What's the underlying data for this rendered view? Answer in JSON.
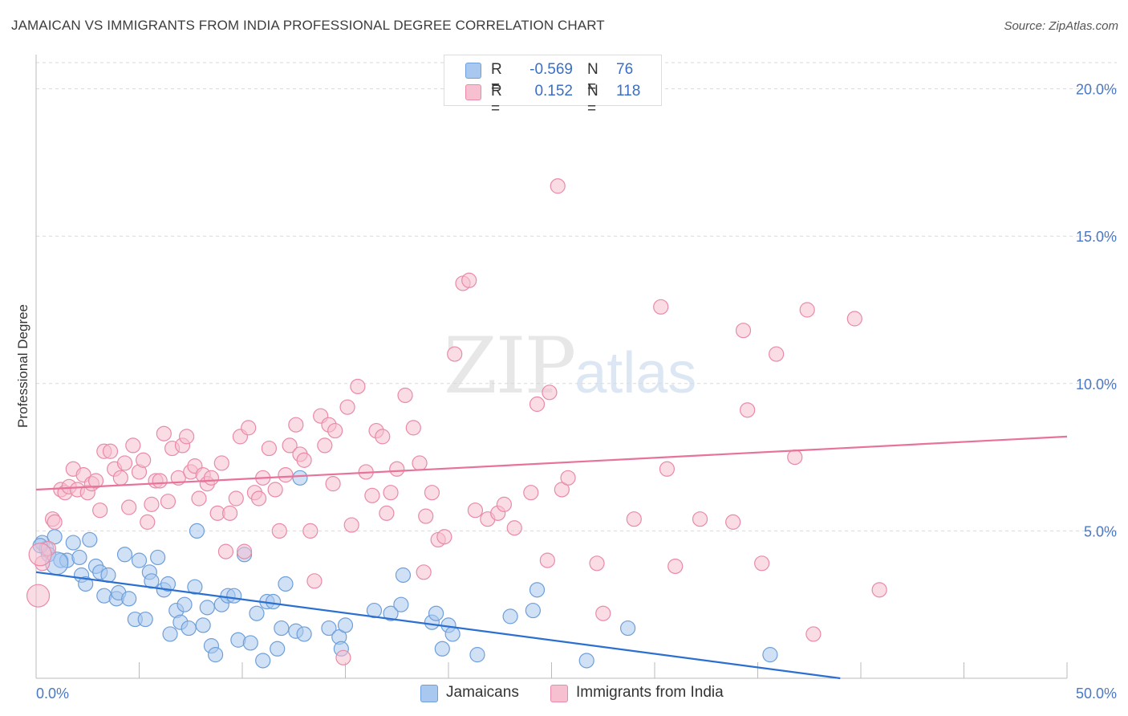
{
  "title": "JAMAICAN VS IMMIGRANTS FROM INDIA PROFESSIONAL DEGREE CORRELATION CHART",
  "source": "Source: ZipAtlas.com",
  "watermark": {
    "zip": "ZIP",
    "atlas": "atlas"
  },
  "legend": {
    "rows": [
      {
        "r_label": "R =",
        "r_value": "-0.569",
        "n_label": "N =",
        "n_value": "76",
        "color": "#a9c8ef",
        "border": "#6e9fd9"
      },
      {
        "r_label": "R =",
        "r_value": "0.152",
        "n_label": "N =",
        "n_value": "118",
        "color": "#f6c0d0",
        "border": "#e98aa8"
      }
    ]
  },
  "bottom_legend": [
    {
      "label": "Jamaicans",
      "color": "#a9c8ef",
      "border": "#6e9fd9"
    },
    {
      "label": "Immigrants from India",
      "color": "#f6c0d0",
      "border": "#e98aa8"
    }
  ],
  "chart_data": {
    "type": "scatter",
    "ylabel": "Professional Degree",
    "xlim": [
      0,
      50
    ],
    "ylim": [
      0,
      20
    ],
    "x_tick_labels": [
      "0.0%",
      "50.0%"
    ],
    "y_tick_labels": [
      "5.0%",
      "10.0%",
      "15.0%",
      "20.0%"
    ],
    "y_ticks": [
      5,
      10,
      15,
      20
    ],
    "grid": true,
    "series": [
      {
        "name": "Jamaicans",
        "color": "#6e9fd9",
        "fill": "#a9c8ef",
        "trend": {
          "x": [
            0,
            39
          ],
          "y": [
            3.6,
            0
          ]
        },
        "points": [
          [
            0.3,
            4.6
          ],
          [
            0.5,
            4.4
          ],
          [
            0.9,
            4.8
          ],
          [
            0.6,
            4.2
          ],
          [
            1.2,
            4.0
          ],
          [
            1.5,
            4.0
          ],
          [
            1.8,
            4.6
          ],
          [
            2.1,
            4.1
          ],
          [
            2.6,
            4.7
          ],
          [
            2.2,
            3.5
          ],
          [
            2.4,
            3.2
          ],
          [
            2.9,
            3.8
          ],
          [
            3.1,
            3.6
          ],
          [
            3.5,
            3.5
          ],
          [
            3.3,
            2.8
          ],
          [
            3.9,
            2.7
          ],
          [
            4.0,
            2.9
          ],
          [
            4.5,
            2.7
          ],
          [
            4.3,
            4.2
          ],
          [
            4.8,
            2.0
          ],
          [
            5.0,
            4.0
          ],
          [
            5.3,
            2.0
          ],
          [
            5.5,
            3.6
          ],
          [
            5.6,
            3.3
          ],
          [
            5.9,
            4.1
          ],
          [
            6.2,
            3.0
          ],
          [
            6.4,
            3.2
          ],
          [
            6.5,
            1.5
          ],
          [
            6.8,
            2.3
          ],
          [
            7.0,
            1.9
          ],
          [
            7.2,
            2.5
          ],
          [
            7.4,
            1.7
          ],
          [
            7.7,
            3.1
          ],
          [
            7.8,
            5.0
          ],
          [
            8.1,
            1.8
          ],
          [
            8.3,
            2.4
          ],
          [
            8.5,
            1.1
          ],
          [
            8.7,
            0.8
          ],
          [
            9.0,
            2.5
          ],
          [
            9.3,
            2.8
          ],
          [
            9.6,
            2.8
          ],
          [
            9.8,
            1.3
          ],
          [
            10.1,
            4.2
          ],
          [
            10.4,
            1.2
          ],
          [
            10.7,
            2.2
          ],
          [
            11.0,
            0.6
          ],
          [
            11.2,
            2.6
          ],
          [
            11.5,
            2.6
          ],
          [
            11.7,
            1.0
          ],
          [
            11.9,
            1.7
          ],
          [
            12.1,
            3.2
          ],
          [
            12.6,
            1.6
          ],
          [
            13.0,
            1.5
          ],
          [
            12.8,
            6.8
          ],
          [
            14.2,
            1.7
          ],
          [
            14.7,
            1.4
          ],
          [
            14.8,
            1.0
          ],
          [
            15.0,
            1.8
          ],
          [
            16.4,
            2.3
          ],
          [
            17.2,
            2.2
          ],
          [
            17.7,
            2.5
          ],
          [
            17.8,
            3.5
          ],
          [
            19.2,
            1.9
          ],
          [
            19.4,
            2.2
          ],
          [
            19.7,
            1.0
          ],
          [
            20.0,
            1.8
          ],
          [
            20.2,
            1.5
          ],
          [
            21.4,
            0.8
          ],
          [
            23.0,
            2.1
          ],
          [
            24.1,
            2.3
          ],
          [
            24.3,
            3.0
          ],
          [
            26.7,
            0.6
          ],
          [
            28.7,
            1.7
          ],
          [
            35.6,
            0.8
          ],
          [
            0.2,
            4.5
          ],
          [
            1.0,
            3.9
          ]
        ]
      },
      {
        "name": "Immigrants from India",
        "color": "#e98aa8",
        "fill": "#f6c0d0",
        "trend": {
          "x": [
            0,
            50
          ],
          "y": [
            6.4,
            8.2
          ]
        },
        "points": [
          [
            0.1,
            2.8
          ],
          [
            0.3,
            3.9
          ],
          [
            0.6,
            4.4
          ],
          [
            0.8,
            5.4
          ],
          [
            0.9,
            5.3
          ],
          [
            1.2,
            6.4
          ],
          [
            1.4,
            6.3
          ],
          [
            1.6,
            6.5
          ],
          [
            1.8,
            7.1
          ],
          [
            2.0,
            6.4
          ],
          [
            2.3,
            6.9
          ],
          [
            2.5,
            6.3
          ],
          [
            2.7,
            6.6
          ],
          [
            2.9,
            6.7
          ],
          [
            3.1,
            5.7
          ],
          [
            3.3,
            7.7
          ],
          [
            3.6,
            7.7
          ],
          [
            3.8,
            7.1
          ],
          [
            4.1,
            6.8
          ],
          [
            4.3,
            7.3
          ],
          [
            4.5,
            5.8
          ],
          [
            4.7,
            7.9
          ],
          [
            5.0,
            7.0
          ],
          [
            5.2,
            7.4
          ],
          [
            5.4,
            5.3
          ],
          [
            5.6,
            5.9
          ],
          [
            5.8,
            6.7
          ],
          [
            6.0,
            6.7
          ],
          [
            6.2,
            8.3
          ],
          [
            6.4,
            6.0
          ],
          [
            6.6,
            7.8
          ],
          [
            6.9,
            6.8
          ],
          [
            7.1,
            7.9
          ],
          [
            7.3,
            8.2
          ],
          [
            7.5,
            7.0
          ],
          [
            7.7,
            7.2
          ],
          [
            7.9,
            6.1
          ],
          [
            8.1,
            6.9
          ],
          [
            8.3,
            6.6
          ],
          [
            8.5,
            6.8
          ],
          [
            8.8,
            5.6
          ],
          [
            9.0,
            7.3
          ],
          [
            9.2,
            4.3
          ],
          [
            9.4,
            5.6
          ],
          [
            9.7,
            6.1
          ],
          [
            9.9,
            8.2
          ],
          [
            10.1,
            4.3
          ],
          [
            10.3,
            8.5
          ],
          [
            10.6,
            6.3
          ],
          [
            10.8,
            6.1
          ],
          [
            11.0,
            6.8
          ],
          [
            11.3,
            7.8
          ],
          [
            11.6,
            6.4
          ],
          [
            11.8,
            5.0
          ],
          [
            12.1,
            6.9
          ],
          [
            12.3,
            7.9
          ],
          [
            12.6,
            8.6
          ],
          [
            12.8,
            7.6
          ],
          [
            13.0,
            7.4
          ],
          [
            13.3,
            5.0
          ],
          [
            13.5,
            3.3
          ],
          [
            13.8,
            8.9
          ],
          [
            14.0,
            7.9
          ],
          [
            14.2,
            8.6
          ],
          [
            14.5,
            8.4
          ],
          [
            14.4,
            6.6
          ],
          [
            14.9,
            0.7
          ],
          [
            15.1,
            9.2
          ],
          [
            15.3,
            5.2
          ],
          [
            15.6,
            9.9
          ],
          [
            16.0,
            7.0
          ],
          [
            16.3,
            6.2
          ],
          [
            16.5,
            8.4
          ],
          [
            16.8,
            8.2
          ],
          [
            17.0,
            5.6
          ],
          [
            17.2,
            6.3
          ],
          [
            17.5,
            7.1
          ],
          [
            17.9,
            9.6
          ],
          [
            18.3,
            8.5
          ],
          [
            18.6,
            7.3
          ],
          [
            18.9,
            5.5
          ],
          [
            18.8,
            3.6
          ],
          [
            19.2,
            6.3
          ],
          [
            19.5,
            4.7
          ],
          [
            19.8,
            4.8
          ],
          [
            20.3,
            11.0
          ],
          [
            20.7,
            13.4
          ],
          [
            21.0,
            13.5
          ],
          [
            21.3,
            5.7
          ],
          [
            21.9,
            5.4
          ],
          [
            22.4,
            5.6
          ],
          [
            22.7,
            5.9
          ],
          [
            23.2,
            5.1
          ],
          [
            24.0,
            6.3
          ],
          [
            24.3,
            9.3
          ],
          [
            24.8,
            4.0
          ],
          [
            24.9,
            9.7
          ],
          [
            25.3,
            16.7
          ],
          [
            25.5,
            6.4
          ],
          [
            25.8,
            6.8
          ],
          [
            27.2,
            3.9
          ],
          [
            27.5,
            2.2
          ],
          [
            29.0,
            5.4
          ],
          [
            30.3,
            12.6
          ],
          [
            30.6,
            7.1
          ],
          [
            31.0,
            3.8
          ],
          [
            32.2,
            5.4
          ],
          [
            33.8,
            5.3
          ],
          [
            34.3,
            11.8
          ],
          [
            34.5,
            9.1
          ],
          [
            35.2,
            3.9
          ],
          [
            35.9,
            11.0
          ],
          [
            36.8,
            7.5
          ],
          [
            37.4,
            12.5
          ],
          [
            37.7,
            1.5
          ],
          [
            39.7,
            12.2
          ],
          [
            40.9,
            3.0
          ],
          [
            0.2,
            4.2
          ]
        ]
      }
    ]
  }
}
